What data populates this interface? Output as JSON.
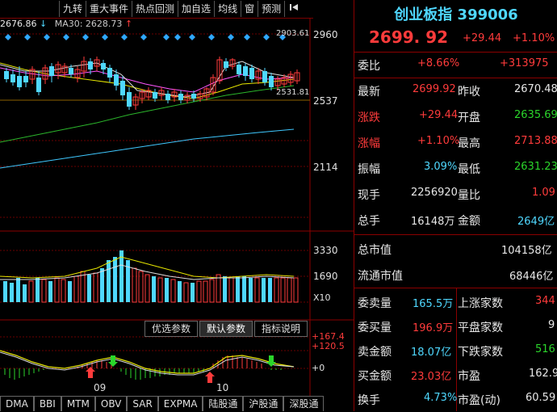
{
  "toolbar": {
    "buttons": [
      "九转",
      "重大事件",
      "热点回测",
      "加自选",
      "均线",
      "窗",
      "预测"
    ],
    "back_icon": "skip-back-icon"
  },
  "legend": {
    "price_text": "2676.86",
    "ma30_text": "MA30: 2628.73"
  },
  "main_axis": {
    "labels": [
      "2960",
      "2537",
      "2114"
    ],
    "top_marker": "2903.61",
    "low_marker": "2531.81"
  },
  "volume_axis": {
    "labels": [
      "3330",
      "1690"
    ],
    "unit": "X10"
  },
  "indicator_axis": {
    "labels": [
      "+167.4",
      "+120.5",
      "+0"
    ]
  },
  "date_labels": [
    "09",
    "10"
  ],
  "param_buttons": [
    "优选参数",
    "默认参数",
    "指标说明"
  ],
  "indicator_tabs": [
    "DMA",
    "BBI",
    "MTM",
    "OBV",
    "SAR",
    "EXPMA",
    "陆股通",
    "沪股通",
    "深股通"
  ],
  "quote": {
    "title": "创业板指 399006",
    "price": "2699. 92",
    "change": "+29.44",
    "change_pct": "+1.10%",
    "rows_a": [
      {
        "label": "委比",
        "v1": "+8.66%",
        "v2": "+313975"
      }
    ],
    "rows_b": [
      {
        "label": "最新",
        "v": "2699.92",
        "label2": "昨收",
        "v2": "2670.48"
      },
      {
        "label": "涨跌",
        "v": "+29.44",
        "label2": "开盘",
        "v2": "2635.69"
      },
      {
        "label": "涨幅",
        "v": "+1.10%",
        "label2": "最高",
        "v2": "2713.88"
      },
      {
        "label": "振幅",
        "v": "3.09%",
        "label2": "最低",
        "v2": "2631.23"
      },
      {
        "label": "现手",
        "v": "2256920",
        "label2": "量比",
        "v2": "1.09"
      },
      {
        "label": "总手",
        "v": "16148万",
        "label2": "金额",
        "v2": "2649亿"
      }
    ],
    "rows_c": [
      {
        "label": "总市值",
        "v": "104158亿"
      },
      {
        "label": "流通市值",
        "v": "68446亿"
      }
    ],
    "rows_d": [
      {
        "label": "委卖量",
        "v": "165.5万",
        "label2": "上涨家数",
        "v2": "344"
      },
      {
        "label": "委买量",
        "v": "196.9万",
        "label2": "平盘家数",
        "v2": "9"
      },
      {
        "label": "卖金额",
        "v": "18.07亿",
        "label2": "下跌家数",
        "v2": "516"
      },
      {
        "label": "买金额",
        "v": "23.03亿",
        "label2": "市盈",
        "v2": "162.9"
      },
      {
        "label": "换手",
        "v": "4.73%",
        "label2": "市盈(动)",
        "v2": "60.59"
      }
    ]
  },
  "colors": {
    "up": "#ff3b3b",
    "down": "#2bd52b",
    "title": "#4fd8ff",
    "border": "#8b0000"
  }
}
